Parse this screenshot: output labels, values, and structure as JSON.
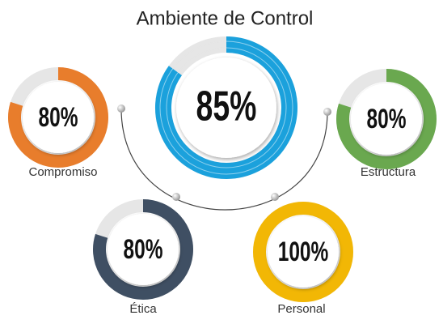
{
  "chart_data": {
    "type": "gauge",
    "title": "Ambiente de Control",
    "categories": [
      null,
      "Compromiso",
      "Estructura",
      "Ética",
      "Personal"
    ],
    "values": [
      85,
      80,
      80,
      80,
      100
    ],
    "value_labels": [
      "85%",
      "80%",
      "80%",
      "80%",
      "100%"
    ],
    "colors": [
      "#1ba1dc",
      "#e87d2c",
      "#6aa84f",
      "#3f4f63",
      "#f2b705"
    ],
    "ylim": [
      0,
      100
    ]
  }
}
